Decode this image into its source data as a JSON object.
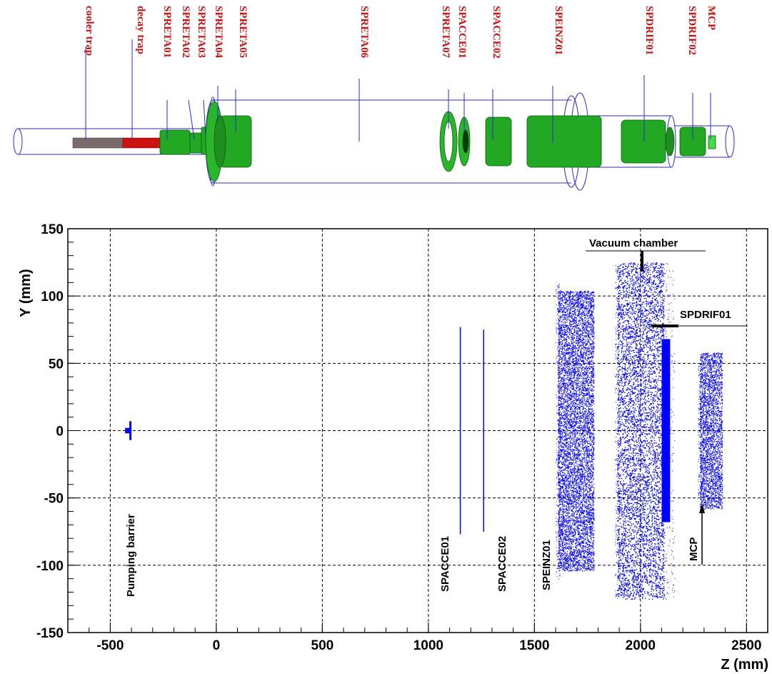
{
  "schematic": {
    "labels": [
      {
        "id": "cooler-trap",
        "text": "cooler trap"
      },
      {
        "id": "decay-trap",
        "text": "decay trap"
      },
      {
        "id": "spreta01",
        "text": "SPRETA01"
      },
      {
        "id": "spreta02",
        "text": "SPRETA02"
      },
      {
        "id": "spreta03",
        "text": "SPRETA03"
      },
      {
        "id": "spreta04",
        "text": "SPRETA04"
      },
      {
        "id": "spreta05",
        "text": "SPRETA05"
      },
      {
        "id": "spreta06",
        "text": "SPRETA06"
      },
      {
        "id": "spreta07",
        "text": "SPRETA07"
      },
      {
        "id": "spacce01",
        "text": "SPACCE01"
      },
      {
        "id": "spacce02",
        "text": "SPACCE02"
      },
      {
        "id": "speinz01",
        "text": "SPEINZ01"
      },
      {
        "id": "spdrif01",
        "text": "SPDRIF01"
      },
      {
        "id": "spdrif02",
        "text": "SPDRIF02"
      },
      {
        "id": "mcp",
        "text": "MCP"
      }
    ],
    "colors": {
      "label": "#cc1111",
      "electrode": "#22a822",
      "outline": "#2a2ad8",
      "cooler": "#7a6a6a",
      "decay": "#cc1111"
    }
  },
  "chart_data": {
    "type": "scatter",
    "xlabel": "Z (mm)",
    "ylabel": "Y (mm)",
    "xlim": [
      -700,
      2600
    ],
    "ylim": [
      -150,
      150
    ],
    "xticks": [
      -500,
      0,
      500,
      1000,
      1500,
      2000,
      2500
    ],
    "yticks": [
      -150,
      -100,
      -50,
      0,
      50,
      100,
      150
    ],
    "xticklabels": [
      "-500",
      "0",
      "500",
      "1000",
      "1500",
      "2000",
      "2500"
    ],
    "yticklabels": [
      "-150",
      "-100",
      "-50",
      "0",
      "50",
      "100",
      "150"
    ],
    "grid": true,
    "point_color": "#0000ff",
    "hit_regions": [
      {
        "name": "pumping-barrier",
        "z": [
          -410,
          -400
        ],
        "y": [
          -7,
          7
        ]
      },
      {
        "name": "spacce01",
        "z": [
          1148,
          1152
        ],
        "y": [
          -77,
          77
        ]
      },
      {
        "name": "spacce02",
        "z": [
          1258,
          1262
        ],
        "y": [
          -75,
          75
        ]
      },
      {
        "name": "speinz01",
        "z": [
          1610,
          1780
        ],
        "y": [
          -104,
          104
        ]
      },
      {
        "name": "vacuum-chamber",
        "z": [
          1890,
          2110
        ],
        "y": [
          -125,
          125
        ]
      },
      {
        "name": "spdrif01",
        "z": [
          2100,
          2140
        ],
        "y": [
          -68,
          68
        ]
      },
      {
        "name": "mcp",
        "z": [
          2280,
          2385
        ],
        "y": [
          -58,
          58
        ]
      }
    ],
    "annotations": [
      {
        "id": "pumping-barrier",
        "text": "Pumping barrier"
      },
      {
        "id": "spacce01",
        "text": "SPACCE01"
      },
      {
        "id": "spacce02",
        "text": "SPACCE02"
      },
      {
        "id": "speinz01",
        "text": "SPEINZ01"
      },
      {
        "id": "vacuum-chamber",
        "text": "Vacuum chamber"
      },
      {
        "id": "spdrif01",
        "text": "SPDRIF01"
      },
      {
        "id": "mcp",
        "text": "MCP"
      }
    ]
  }
}
